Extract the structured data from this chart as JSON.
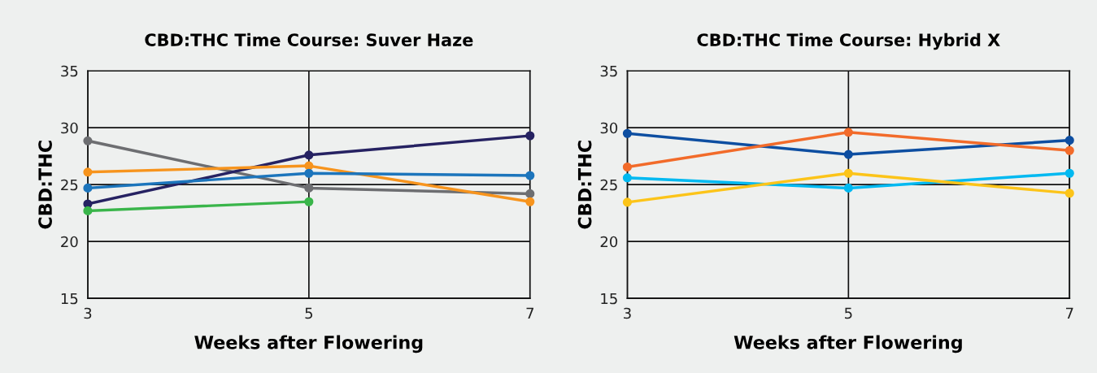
{
  "chart_data": [
    {
      "type": "line",
      "title": "CBD:THC Time Course: Suver Haze",
      "xlabel": "Weeks after Flowering",
      "ylabel": "CBD:THC",
      "x": [
        3,
        5,
        7
      ],
      "xlim": [
        3,
        7
      ],
      "xticks": [
        3,
        5,
        7
      ],
      "ylim": [
        15,
        35
      ],
      "yticks": [
        15,
        20,
        25,
        30,
        35
      ],
      "grid": true,
      "marker": "circle",
      "line_style": "solid",
      "series": [
        {
          "color": "#6d6e71",
          "values": [
            28.85,
            24.7,
            24.2
          ]
        },
        {
          "color": "#262262",
          "values": [
            23.3,
            27.6,
            29.3
          ]
        },
        {
          "color": "#f7941d",
          "values": [
            26.1,
            26.65,
            23.5
          ]
        },
        {
          "color": "#1c75bc",
          "values": [
            24.7,
            26.0,
            25.8
          ]
        },
        {
          "color": "#39b54a",
          "values": [
            22.7,
            23.5,
            null
          ]
        }
      ]
    },
    {
      "type": "line",
      "title": "CBD:THC Time Course: Hybrid X",
      "xlabel": "Weeks after Flowering",
      "ylabel": "CBD:THC",
      "x": [
        3,
        5,
        7
      ],
      "xlim": [
        3,
        7
      ],
      "xticks": [
        3,
        5,
        7
      ],
      "ylim": [
        15,
        35
      ],
      "yticks": [
        15,
        20,
        25,
        30,
        35
      ],
      "grid": true,
      "marker": "circle",
      "line_style": "solid",
      "series": [
        {
          "color": "#0d4ea1",
          "values": [
            29.5,
            27.65,
            28.9
          ]
        },
        {
          "color": "#f26b2a",
          "values": [
            26.55,
            29.6,
            28.0
          ]
        },
        {
          "color": "#00b9f1",
          "values": [
            25.6,
            24.7,
            26.0
          ]
        },
        {
          "color": "#fcc419",
          "values": [
            23.45,
            26.0,
            24.25
          ]
        }
      ]
    }
  ]
}
